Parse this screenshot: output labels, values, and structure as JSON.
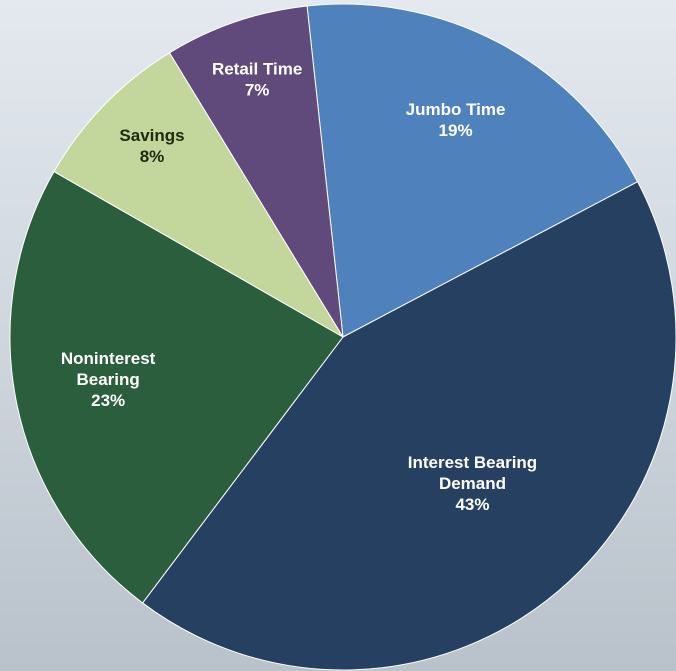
{
  "chart_data": {
    "type": "pie",
    "categories": [
      "Jumbo Time",
      "Interest Bearing Demand",
      "Noninterest Bearing",
      "Savings",
      "Retail Time"
    ],
    "values": [
      19,
      43,
      23,
      8,
      7
    ],
    "value_labels": [
      "19%",
      "43%",
      "23%",
      "8%",
      "7%"
    ],
    "colors": [
      "#4f81bd",
      "#254061",
      "#2a5e3c",
      "#c3d69b",
      "#604a7b"
    ]
  }
}
